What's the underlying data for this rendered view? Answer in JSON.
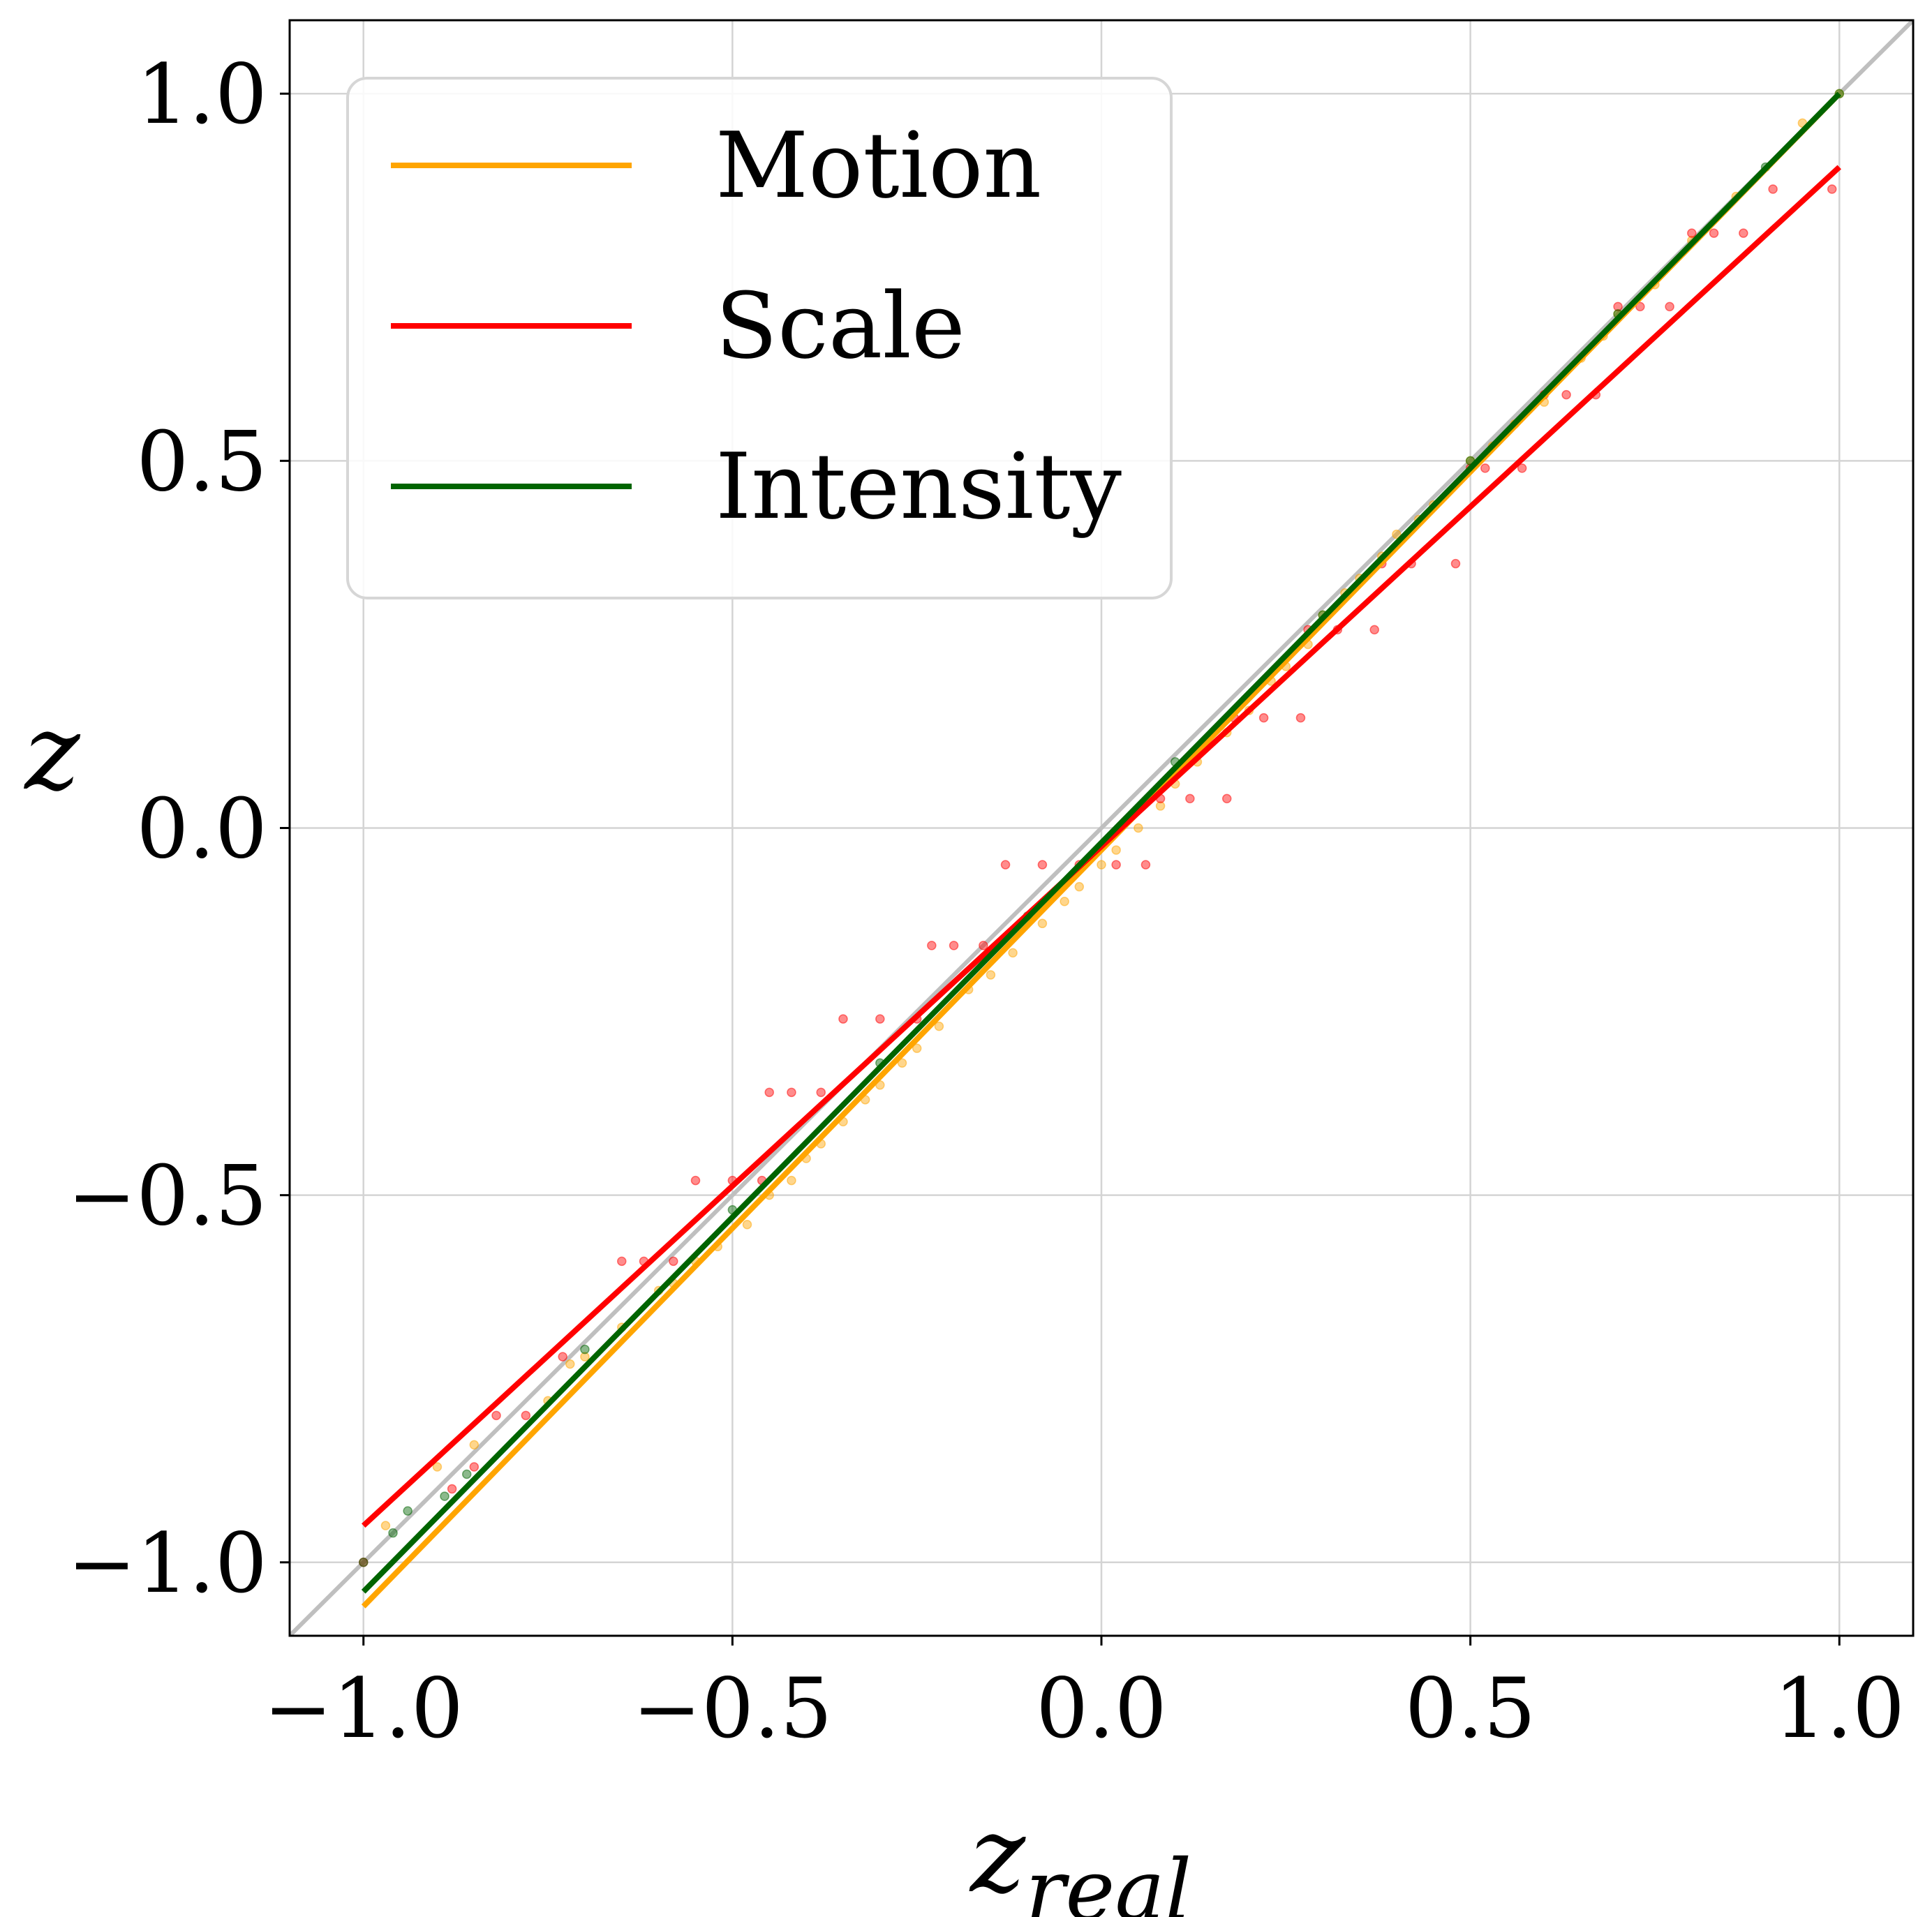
{
  "chart_data": {
    "type": "scatter",
    "xlabel": "z_real",
    "ylabel": "z",
    "xlim": [
      -1.1,
      1.1
    ],
    "ylim": [
      -1.1,
      1.1
    ],
    "grid": true,
    "legend_placement": "top-left",
    "x_ticks": [
      {
        "value": -1.0,
        "label": "−1.0"
      },
      {
        "value": -0.5,
        "label": "−0.5"
      },
      {
        "value": 0.0,
        "label": "0.0"
      },
      {
        "value": 0.5,
        "label": "0.5"
      },
      {
        "value": 1.0,
        "label": "1.0"
      }
    ],
    "y_ticks": [
      {
        "value": -1.0,
        "label": "−1.0"
      },
      {
        "value": -0.5,
        "label": "−0.5"
      },
      {
        "value": 0.0,
        "label": "0.0"
      },
      {
        "value": 0.5,
        "label": "0.5"
      },
      {
        "value": 1.0,
        "label": "1.0"
      }
    ],
    "reference_line": {
      "color": "#bfbfbf",
      "x": [
        -1.1,
        1.1
      ],
      "y": [
        -1.1,
        1.1
      ]
    },
    "series": [
      {
        "name": "Motion",
        "color": "#ffa500",
        "fit_line": {
          "x": [
            -1.0,
            1.0
          ],
          "y": [
            -1.06,
            1.0
          ]
        },
        "points": [
          [
            -0.97,
            -0.95
          ],
          [
            -0.9,
            -0.87
          ],
          [
            -0.85,
            -0.84
          ],
          [
            -0.75,
            -0.78
          ],
          [
            -0.72,
            -0.73
          ],
          [
            -0.7,
            -0.72
          ],
          [
            -0.65,
            -0.68
          ],
          [
            -0.6,
            -0.63
          ],
          [
            -0.58,
            -0.62
          ],
          [
            -0.55,
            -0.59
          ],
          [
            -0.52,
            -0.57
          ],
          [
            -0.48,
            -0.54
          ],
          [
            -0.45,
            -0.5
          ],
          [
            -0.42,
            -0.48
          ],
          [
            -0.4,
            -0.45
          ],
          [
            -0.38,
            -0.43
          ],
          [
            -0.35,
            -0.4
          ],
          [
            -0.32,
            -0.37
          ],
          [
            -0.3,
            -0.35
          ],
          [
            -0.27,
            -0.32
          ],
          [
            -0.25,
            -0.3
          ],
          [
            -0.22,
            -0.27
          ],
          [
            -0.18,
            -0.22
          ],
          [
            -0.15,
            -0.2
          ],
          [
            -0.12,
            -0.17
          ],
          [
            -0.08,
            -0.13
          ],
          [
            -0.05,
            -0.1
          ],
          [
            -0.03,
            -0.08
          ],
          [
            0.0,
            -0.05
          ],
          [
            0.02,
            -0.03
          ],
          [
            0.05,
            0.0
          ],
          [
            0.08,
            0.03
          ],
          [
            0.1,
            0.06
          ],
          [
            0.13,
            0.09
          ],
          [
            0.17,
            0.13
          ],
          [
            0.2,
            0.16
          ],
          [
            0.23,
            0.2
          ],
          [
            0.25,
            0.22
          ],
          [
            0.28,
            0.25
          ],
          [
            0.3,
            0.29
          ],
          [
            0.33,
            0.32
          ],
          [
            0.35,
            0.34
          ],
          [
            0.38,
            0.37
          ],
          [
            0.4,
            0.4
          ],
          [
            0.43,
            0.42
          ],
          [
            0.45,
            0.44
          ],
          [
            0.5,
            0.5
          ],
          [
            0.53,
            0.52
          ],
          [
            0.56,
            0.55
          ],
          [
            0.6,
            0.58
          ],
          [
            0.65,
            0.64
          ],
          [
            0.68,
            0.67
          ],
          [
            0.7,
            0.7
          ],
          [
            0.75,
            0.74
          ],
          [
            0.8,
            0.8
          ],
          [
            0.86,
            0.86
          ],
          [
            0.95,
            0.96
          ],
          [
            1.0,
            1.0
          ]
        ]
      },
      {
        "name": "Scale",
        "color": "#ff0000",
        "fit_line": {
          "x": [
            -1.0,
            1.0
          ],
          "y": [
            -0.95,
            0.9
          ]
        },
        "points": [
          [
            -1.0,
            -1.0
          ],
          [
            -0.88,
            -0.9
          ],
          [
            -0.85,
            -0.87
          ],
          [
            -0.82,
            -0.8
          ],
          [
            -0.78,
            -0.8
          ],
          [
            -0.73,
            -0.72
          ],
          [
            -0.65,
            -0.59
          ],
          [
            -0.62,
            -0.59
          ],
          [
            -0.58,
            -0.59
          ],
          [
            -0.55,
            -0.48
          ],
          [
            -0.5,
            -0.48
          ],
          [
            -0.46,
            -0.48
          ],
          [
            -0.45,
            -0.36
          ],
          [
            -0.42,
            -0.36
          ],
          [
            -0.38,
            -0.36
          ],
          [
            -0.35,
            -0.26
          ],
          [
            -0.3,
            -0.26
          ],
          [
            -0.25,
            -0.26
          ],
          [
            -0.23,
            -0.16
          ],
          [
            -0.2,
            -0.16
          ],
          [
            -0.16,
            -0.16
          ],
          [
            -0.13,
            -0.05
          ],
          [
            -0.08,
            -0.05
          ],
          [
            -0.03,
            -0.05
          ],
          [
            0.02,
            -0.05
          ],
          [
            0.06,
            -0.05
          ],
          [
            0.08,
            0.04
          ],
          [
            0.12,
            0.04
          ],
          [
            0.17,
            0.04
          ],
          [
            0.18,
            0.15
          ],
          [
            0.22,
            0.15
          ],
          [
            0.27,
            0.15
          ],
          [
            0.28,
            0.27
          ],
          [
            0.32,
            0.27
          ],
          [
            0.37,
            0.27
          ],
          [
            0.38,
            0.36
          ],
          [
            0.42,
            0.36
          ],
          [
            0.48,
            0.36
          ],
          [
            0.5,
            0.49
          ],
          [
            0.52,
            0.49
          ],
          [
            0.57,
            0.49
          ],
          [
            0.6,
            0.59
          ],
          [
            0.63,
            0.59
          ],
          [
            0.67,
            0.59
          ],
          [
            0.7,
            0.71
          ],
          [
            0.73,
            0.71
          ],
          [
            0.77,
            0.71
          ],
          [
            0.8,
            0.81
          ],
          [
            0.83,
            0.81
          ],
          [
            0.87,
            0.81
          ],
          [
            0.91,
            0.87
          ],
          [
            0.99,
            0.87
          ]
        ]
      },
      {
        "name": "Intensity",
        "color": "#006400",
        "fit_line": {
          "x": [
            -1.0,
            1.0
          ],
          "y": [
            -1.04,
            1.0
          ]
        },
        "points": [
          [
            -1.0,
            -1.0
          ],
          [
            -0.96,
            -0.96
          ],
          [
            -0.94,
            -0.93
          ],
          [
            -0.89,
            -0.91
          ],
          [
            -0.86,
            -0.88
          ],
          [
            -0.7,
            -0.71
          ],
          [
            -0.5,
            -0.52
          ],
          [
            -0.3,
            -0.32
          ],
          [
            -0.1,
            -0.12
          ],
          [
            0.1,
            0.09
          ],
          [
            0.3,
            0.29
          ],
          [
            0.5,
            0.5
          ],
          [
            0.7,
            0.7
          ],
          [
            0.9,
            0.9
          ],
          [
            1.0,
            1.0
          ]
        ]
      }
    ]
  }
}
